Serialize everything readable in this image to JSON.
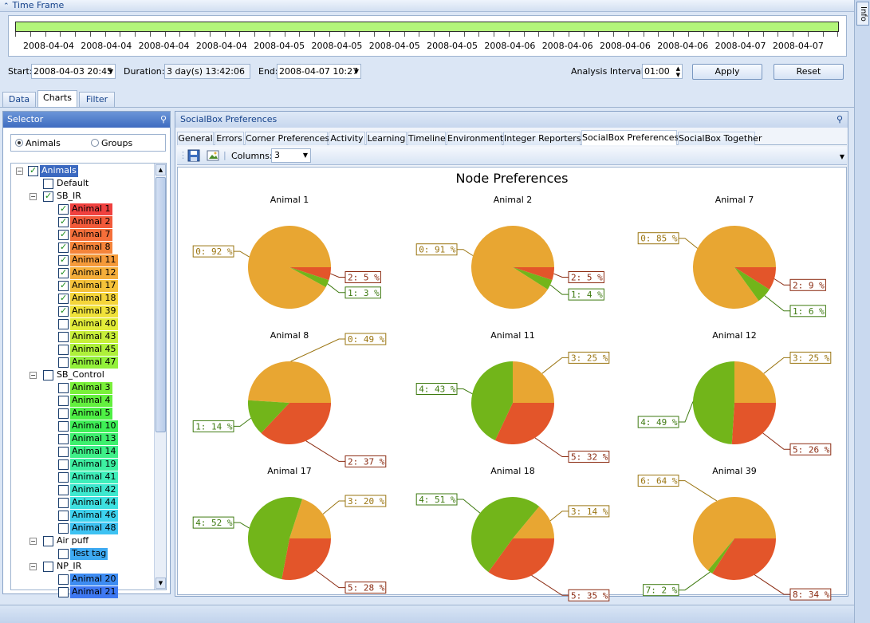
{
  "timeframe": {
    "title": "Time Frame",
    "ticks": [
      "2008-04-04",
      "2008-04-04",
      "2008-04-04",
      "2008-04-04",
      "2008-04-05",
      "2008-04-05",
      "2008-04-05",
      "2008-04-05",
      "2008-04-06",
      "2008-04-06",
      "2008-04-06",
      "2008-04-06",
      "2008-04-07",
      "2008-04-07"
    ],
    "start_label": "Start:",
    "start_value": "2008-04-03 20:45",
    "duration_label": "Duration:",
    "duration_value": "3 day(s) 13:42:06",
    "end_label": "End:",
    "end_value": "2008-04-07 10:27",
    "interval_label": "Analysis Interval:",
    "interval_value": "01:00",
    "apply_label": "Apply",
    "reset_label": "Reset"
  },
  "right_tab": "Info",
  "main_tabs": [
    {
      "label": "Data",
      "active": false
    },
    {
      "label": "Charts",
      "active": true
    },
    {
      "label": "Filter",
      "active": false
    }
  ],
  "selector": {
    "title": "Selector",
    "radio_animals": "Animals",
    "radio_groups": "Groups",
    "tree": [
      {
        "label": "Animals",
        "level": 0,
        "expander": "minus",
        "checked": true,
        "color": "#3b69c0",
        "text_color": "#ffffff"
      },
      {
        "label": "Default",
        "level": 1,
        "expander": "",
        "checked": false,
        "color": "",
        "text_color": "#000000"
      },
      {
        "label": "SB_IR",
        "level": 1,
        "expander": "minus",
        "checked": true,
        "color": "",
        "text_color": "#000000"
      },
      {
        "label": "Animal 1",
        "level": 2,
        "expander": "",
        "checked": true,
        "color": "#f0413f",
        "text_color": "#000000"
      },
      {
        "label": "Animal 2",
        "level": 2,
        "expander": "",
        "checked": true,
        "color": "#f25a3a",
        "text_color": "#000000"
      },
      {
        "label": "Animal 7",
        "level": 2,
        "expander": "",
        "checked": true,
        "color": "#f56f3a",
        "text_color": "#000000"
      },
      {
        "label": "Animal 8",
        "level": 2,
        "expander": "",
        "checked": true,
        "color": "#f5843a",
        "text_color": "#000000"
      },
      {
        "label": "Animal 11",
        "level": 2,
        "expander": "",
        "checked": true,
        "color": "#f59a3a",
        "text_color": "#000000"
      },
      {
        "label": "Animal 12",
        "level": 2,
        "expander": "",
        "checked": true,
        "color": "#f5ae3a",
        "text_color": "#000000"
      },
      {
        "label": "Animal 17",
        "level": 2,
        "expander": "",
        "checked": true,
        "color": "#f5c23a",
        "text_color": "#000000"
      },
      {
        "label": "Animal 18",
        "level": 2,
        "expander": "",
        "checked": true,
        "color": "#f5d53a",
        "text_color": "#000000"
      },
      {
        "label": "Animal 39",
        "level": 2,
        "expander": "",
        "checked": true,
        "color": "#f0e23a",
        "text_color": "#000000"
      },
      {
        "label": "Animal 40",
        "level": 2,
        "expander": "",
        "checked": false,
        "color": "#e2ec3a",
        "text_color": "#000000"
      },
      {
        "label": "Animal 43",
        "level": 2,
        "expander": "",
        "checked": false,
        "color": "#c8ef3a",
        "text_color": "#000000"
      },
      {
        "label": "Animal 45",
        "level": 2,
        "expander": "",
        "checked": false,
        "color": "#aef03a",
        "text_color": "#000000"
      },
      {
        "label": "Animal 47",
        "level": 2,
        "expander": "",
        "checked": false,
        "color": "#92f03a",
        "text_color": "#000000"
      },
      {
        "label": "SB_Control",
        "level": 1,
        "expander": "minus",
        "checked": false,
        "color": "",
        "text_color": "#000000"
      },
      {
        "label": "Animal 3",
        "level": 2,
        "expander": "",
        "checked": false,
        "color": "#7af03a",
        "text_color": "#000000"
      },
      {
        "label": "Animal 4",
        "level": 2,
        "expander": "",
        "checked": false,
        "color": "#63f03e",
        "text_color": "#000000"
      },
      {
        "label": "Animal 5",
        "level": 2,
        "expander": "",
        "checked": false,
        "color": "#4ef045",
        "text_color": "#000000"
      },
      {
        "label": "Animal 10",
        "level": 2,
        "expander": "",
        "checked": false,
        "color": "#3ef056",
        "text_color": "#000000"
      },
      {
        "label": "Animal 13",
        "level": 2,
        "expander": "",
        "checked": false,
        "color": "#3ef06e",
        "text_color": "#000000"
      },
      {
        "label": "Animal 14",
        "level": 2,
        "expander": "",
        "checked": false,
        "color": "#3ef088",
        "text_color": "#000000"
      },
      {
        "label": "Animal 19",
        "level": 2,
        "expander": "",
        "checked": false,
        "color": "#3ef0a2",
        "text_color": "#000000"
      },
      {
        "label": "Animal 41",
        "level": 2,
        "expander": "",
        "checked": false,
        "color": "#3eeeba",
        "text_color": "#000000"
      },
      {
        "label": "Animal 42",
        "level": 2,
        "expander": "",
        "checked": false,
        "color": "#3ee8cf",
        "text_color": "#000000"
      },
      {
        "label": "Animal 44",
        "level": 2,
        "expander": "",
        "checked": false,
        "color": "#3ee0e0",
        "text_color": "#000000"
      },
      {
        "label": "Animal 46",
        "level": 2,
        "expander": "",
        "checked": false,
        "color": "#3ed2ee",
        "text_color": "#000000"
      },
      {
        "label": "Animal 48",
        "level": 2,
        "expander": "",
        "checked": false,
        "color": "#3ec2f2",
        "text_color": "#000000"
      },
      {
        "label": "Air puff",
        "level": 1,
        "expander": "minus",
        "checked": false,
        "color": "",
        "text_color": "#000000"
      },
      {
        "label": "Test tag",
        "level": 2,
        "expander": "",
        "checked": false,
        "color": "#3eaaf2",
        "text_color": "#000000"
      },
      {
        "label": "NP_IR",
        "level": 1,
        "expander": "minus",
        "checked": false,
        "color": "",
        "text_color": "#000000"
      },
      {
        "label": "Animal 20",
        "level": 2,
        "expander": "",
        "checked": false,
        "color": "#3e8cf2",
        "text_color": "#000000"
      },
      {
        "label": "Animal 21",
        "level": 2,
        "expander": "",
        "checked": false,
        "color": "#3e78f2",
        "text_color": "#000000"
      }
    ]
  },
  "panel": {
    "title": "SocialBox Preferences",
    "tabs": [
      {
        "label": "General",
        "active": false
      },
      {
        "label": "Errors",
        "active": false
      },
      {
        "label": "Corner Preferences",
        "active": false
      },
      {
        "label": "Activity",
        "active": false
      },
      {
        "label": "Learning",
        "active": false
      },
      {
        "label": "Timeline",
        "active": false
      },
      {
        "label": "Environment",
        "active": false
      },
      {
        "label": "Integer Reporters",
        "active": false
      },
      {
        "label": "SocialBox Preferences",
        "active": true
      },
      {
        "label": "SocialBox Together",
        "active": false
      }
    ],
    "columns_label": "Columns:",
    "columns_value": "3"
  },
  "colors": {
    "orange": "#e8a632",
    "red": "#e3552a",
    "green": "#72b51a",
    "label_orange": "#9a7410",
    "label_red": "#8a2a10",
    "label_green": "#3e7a10"
  },
  "chart_data": {
    "type": "pie",
    "title": "Node Preferences",
    "charts": [
      {
        "name": "Animal 1",
        "slices": [
          {
            "label": "0: 92 %",
            "value": 92,
            "color": "orange"
          },
          {
            "label": "2: 5 %",
            "value": 5,
            "color": "red"
          },
          {
            "label": "1: 3 %",
            "value": 3,
            "color": "green"
          }
        ]
      },
      {
        "name": "Animal 2",
        "slices": [
          {
            "label": "0: 91 %",
            "value": 91,
            "color": "orange"
          },
          {
            "label": "2: 5 %",
            "value": 5,
            "color": "red"
          },
          {
            "label": "1: 4 %",
            "value": 4,
            "color": "green"
          }
        ]
      },
      {
        "name": "Animal 7",
        "slices": [
          {
            "label": "0: 85 %",
            "value": 85,
            "color": "orange"
          },
          {
            "label": "2: 9 %",
            "value": 9,
            "color": "red"
          },
          {
            "label": "1: 6 %",
            "value": 6,
            "color": "green"
          }
        ]
      },
      {
        "name": "Animal 8",
        "slices": [
          {
            "label": "0: 49 %",
            "value": 49,
            "color": "orange"
          },
          {
            "label": "2: 37 %",
            "value": 37,
            "color": "red"
          },
          {
            "label": "1: 14 %",
            "value": 14,
            "color": "green"
          }
        ]
      },
      {
        "name": "Animal 11",
        "slices": [
          {
            "label": "3: 25 %",
            "value": 25,
            "color": "orange"
          },
          {
            "label": "5: 32 %",
            "value": 32,
            "color": "red"
          },
          {
            "label": "4: 43 %",
            "value": 43,
            "color": "green"
          }
        ]
      },
      {
        "name": "Animal 12",
        "slices": [
          {
            "label": "3: 25 %",
            "value": 25,
            "color": "orange"
          },
          {
            "label": "5: 26 %",
            "value": 26,
            "color": "red"
          },
          {
            "label": "4: 49 %",
            "value": 49,
            "color": "green"
          }
        ]
      },
      {
        "name": "Animal 17",
        "slices": [
          {
            "label": "3: 20 %",
            "value": 20,
            "color": "orange"
          },
          {
            "label": "5: 28 %",
            "value": 28,
            "color": "red"
          },
          {
            "label": "4: 52 %",
            "value": 52,
            "color": "green"
          }
        ]
      },
      {
        "name": "Animal 18",
        "slices": [
          {
            "label": "3: 14 %",
            "value": 14,
            "color": "orange"
          },
          {
            "label": "5: 35 %",
            "value": 35,
            "color": "red"
          },
          {
            "label": "4: 51 %",
            "value": 51,
            "color": "green"
          }
        ]
      },
      {
        "name": "Animal 39",
        "slices": [
          {
            "label": "6: 64 %",
            "value": 64,
            "color": "orange"
          },
          {
            "label": "8: 34 %",
            "value": 34,
            "color": "red"
          },
          {
            "label": "7: 2 %",
            "value": 2,
            "color": "green"
          }
        ]
      }
    ]
  }
}
